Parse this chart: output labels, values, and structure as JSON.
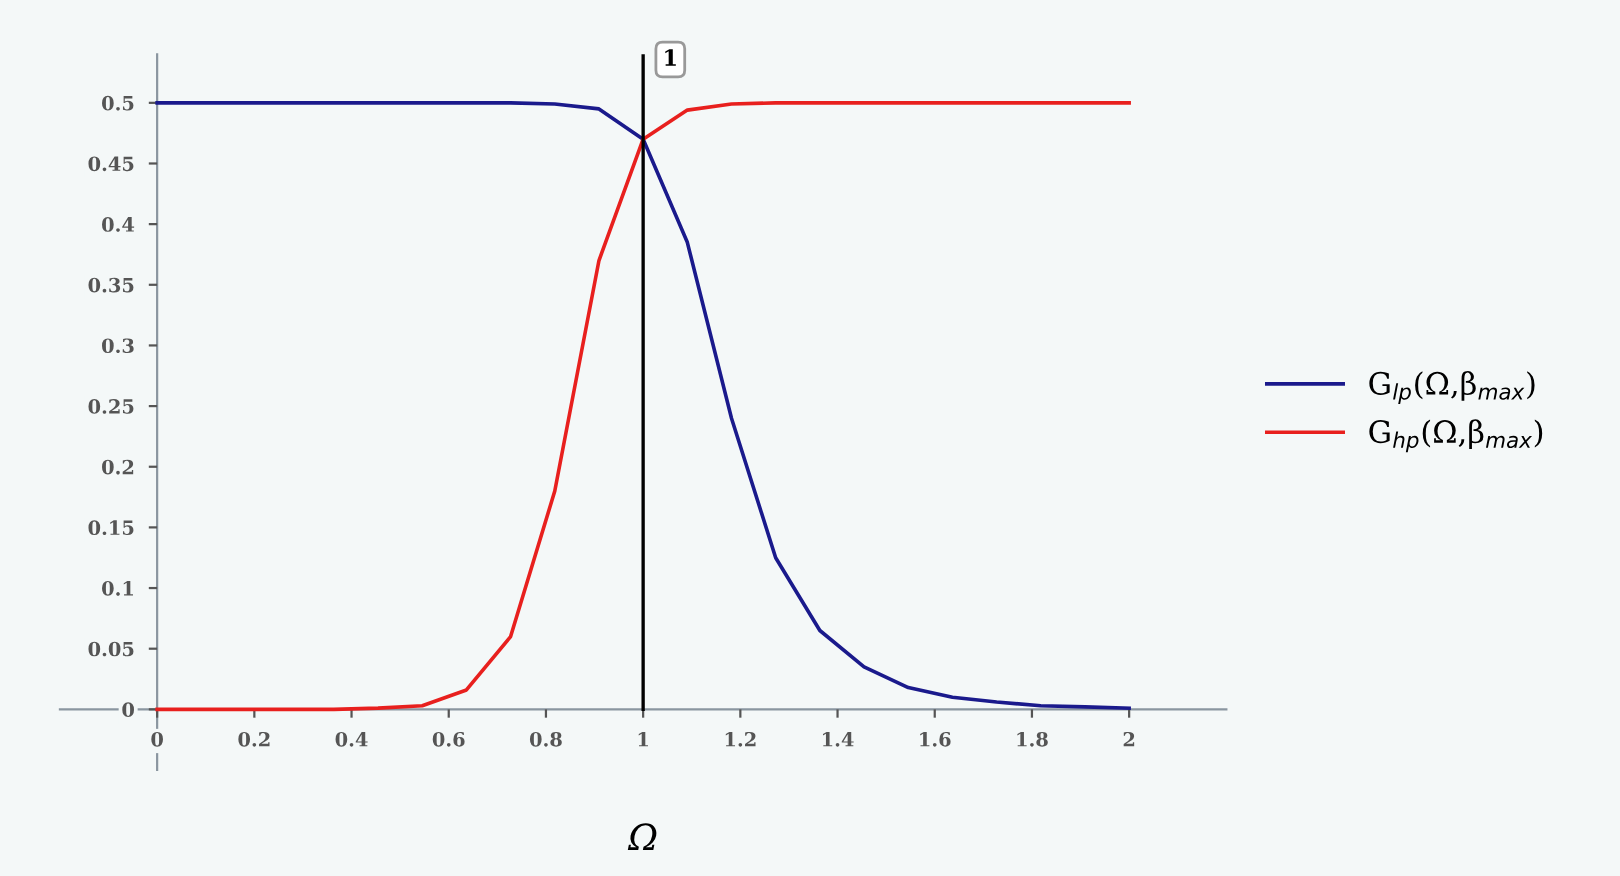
{
  "chart_data": {
    "type": "line",
    "xlabel": "Ω",
    "x": [
      0,
      0.0909,
      0.1818,
      0.2727,
      0.3636,
      0.4545,
      0.5455,
      0.6364,
      0.7273,
      0.8182,
      0.9091,
      1.0,
      1.0909,
      1.1818,
      1.2727,
      1.3636,
      1.4545,
      1.5455,
      1.6364,
      1.7273,
      1.8182,
      1.9091,
      2.0
    ],
    "series": [
      {
        "name": "G$_{lp}$(Ω,β$_{max}$)",
        "color": "#1a1a8c",
        "values": [
          0.5,
          0.5,
          0.5,
          0.5,
          0.5,
          0.5,
          0.5,
          0.5,
          0.5,
          0.499,
          0.495,
          0.47,
          0.385,
          0.24,
          0.125,
          0.065,
          0.035,
          0.018,
          0.01,
          0.006,
          0.003,
          0.002,
          0.001
        ]
      },
      {
        "name": "G$_{hp}$(Ω,β$_{max}$)",
        "color": "#e8201e",
        "values": [
          0,
          0,
          0,
          0,
          0,
          0.001,
          0.003,
          0.016,
          0.06,
          0.18,
          0.37,
          0.47,
          0.494,
          0.499,
          0.5,
          0.5,
          0.5,
          0.5,
          0.5,
          0.5,
          0.5,
          0.5,
          0.5
        ]
      }
    ],
    "xlim": [
      -0.2,
      2.2
    ],
    "ylim": [
      -0.05,
      0.54
    ],
    "xticks": [
      0,
      0.2,
      0.4,
      0.6,
      0.8,
      1,
      1.2,
      1.4,
      1.6,
      1.8,
      2
    ],
    "yticks": [
      0,
      0.05,
      0.1,
      0.15,
      0.2,
      0.25,
      0.3,
      0.35,
      0.4,
      0.45,
      0.5
    ],
    "ref_lines": [
      {
        "axis": "x",
        "value": 1,
        "label": "1",
        "color": "#000000"
      }
    ],
    "legend": "right",
    "grid": false,
    "marker": "none",
    "line_style": "solid"
  }
}
